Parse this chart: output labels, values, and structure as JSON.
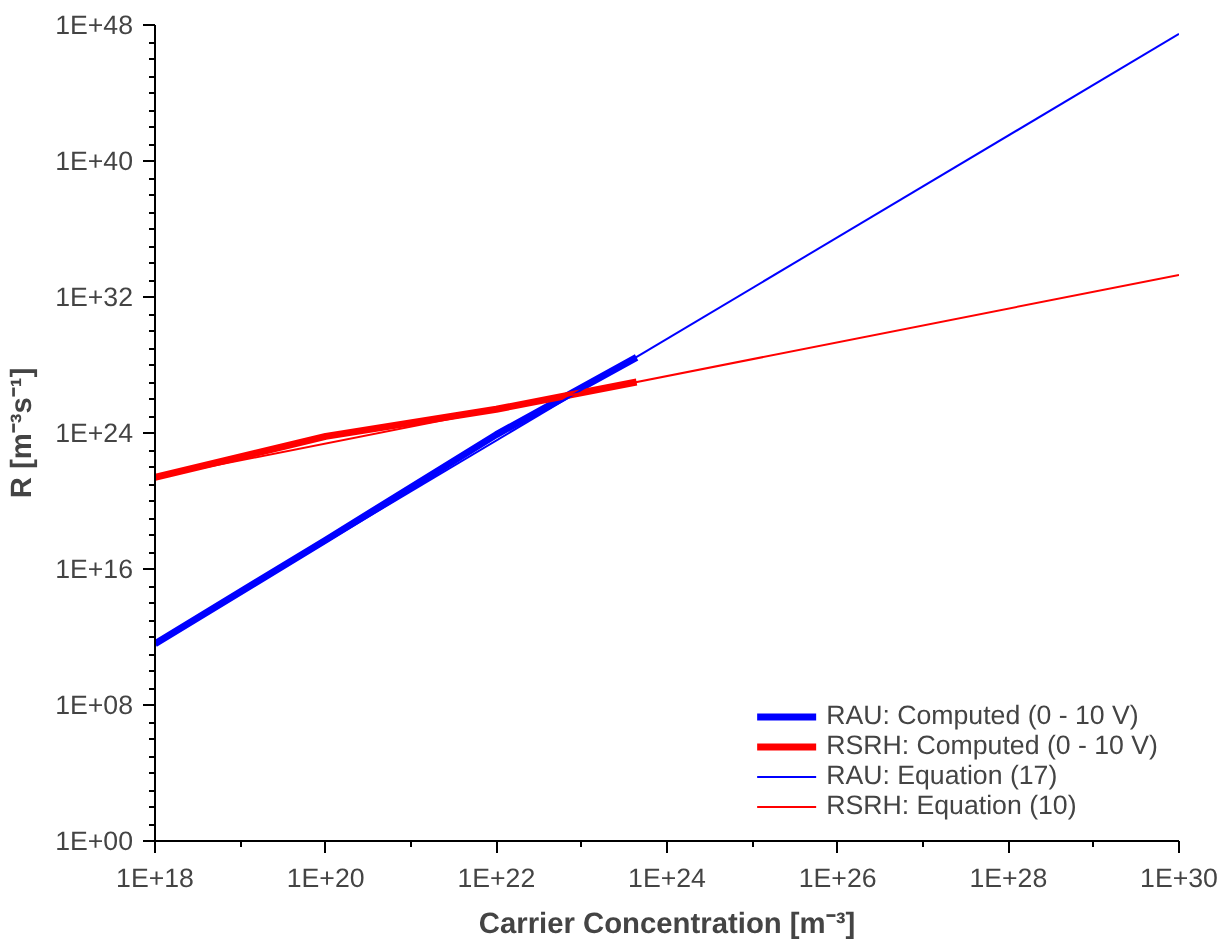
{
  "chart_data": {
    "type": "line",
    "xlabel": "Carrier Concentration [m⁻³]",
    "ylabel": "R [m⁻³s⁻¹]",
    "log": "xy",
    "grid": false,
    "legend": "bottom right",
    "line_style": "solid",
    "marker": "none",
    "xlim": [
      1e+18,
      1e+30
    ],
    "ylim": [
      1,
      1e+48
    ],
    "xticks": [
      {
        "value": 1e+18,
        "label": "1E+18"
      },
      {
        "value": 1e+20,
        "label": "1E+20"
      },
      {
        "value": 1e+22,
        "label": "1E+22"
      },
      {
        "value": 1e+24,
        "label": "1E+24"
      },
      {
        "value": 1e+26,
        "label": "1E+26"
      },
      {
        "value": 1e+28,
        "label": "1E+28"
      },
      {
        "value": 1e+30,
        "label": "1E+30"
      }
    ],
    "yticks": [
      {
        "value": 1,
        "label": "1E+00"
      },
      {
        "value": 100000000.0,
        "label": "1E+08"
      },
      {
        "value": 1e+16,
        "label": "1E+16"
      },
      {
        "value": 1e+24,
        "label": "1E+24"
      },
      {
        "value": 1e+32,
        "label": "1E+32"
      },
      {
        "value": 1e+40,
        "label": "1E+40"
      },
      {
        "value": 1e+48,
        "label": "1E+48"
      }
    ],
    "series": [
      {
        "name": "RAU: Computed (0 - 10 V)",
        "color": "#0000ff",
        "x": [
          1e+18,
          1e+20,
          1e+22,
          4.4e+23
        ],
        "values": [
          400000000000.0,
          5e+17,
          8e+23,
          2.8e+28
        ]
      },
      {
        "name": "RSRH: Computed (0 - 10 V)",
        "color": "#ff0000",
        "x": [
          1e+18,
          1e+20,
          1e+22,
          4.4e+23
        ],
        "values": [
          2.5e+21,
          6.3e+23,
          2.5e+25,
          1e+27
        ]
      },
      {
        "name": "RAU: Equation (17)",
        "color": "#0000ff",
        "x": [
          1e+18,
          1e+30
        ],
        "values": [
          400000000000.0,
          3e+47
        ]
      },
      {
        "name": "RSRH: Equation (10)",
        "color": "#ff0000",
        "x": [
          1e+18,
          1e+30
        ],
        "values": [
          2.5e+21,
          2e+33
        ]
      }
    ]
  }
}
